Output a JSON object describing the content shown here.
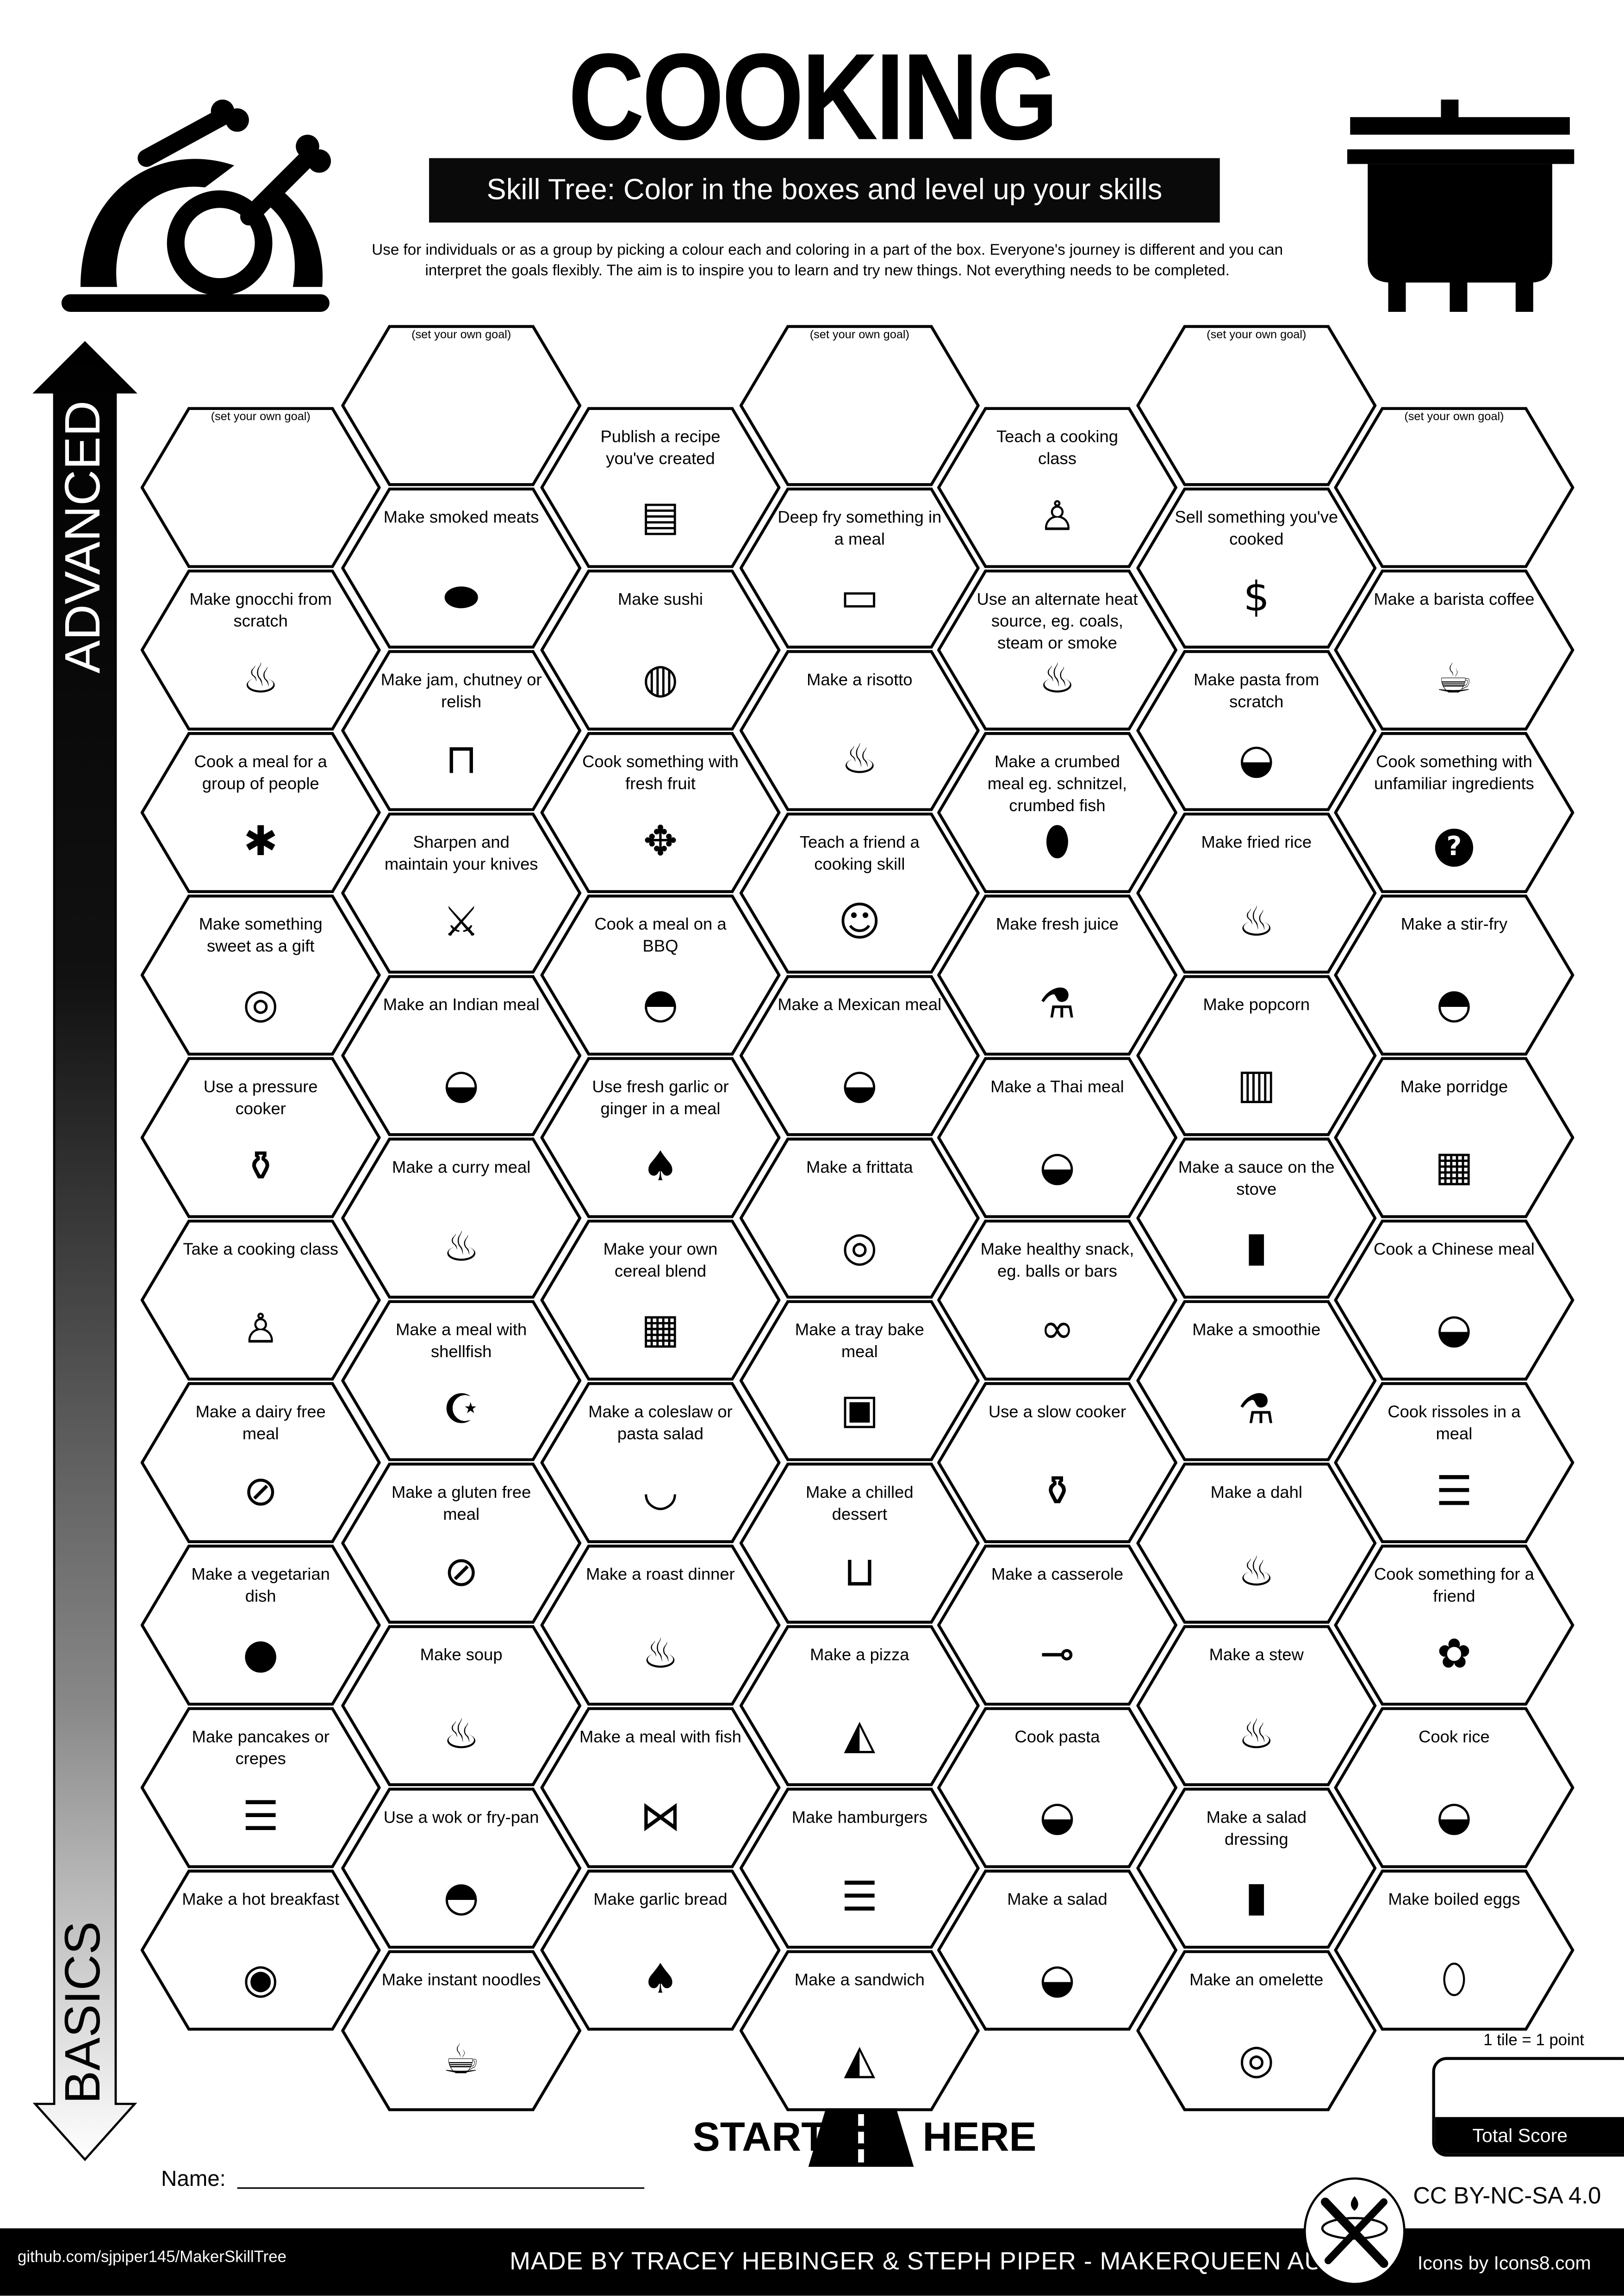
{
  "header": {
    "title": "COOKING",
    "banner": "Skill Tree:  Color in the boxes and level up your skills",
    "description_line1": "Use for individuals or as a group by picking a colour each and coloring in a part of the box.  Everyone's journey is different and you can",
    "description_line2": "interpret the goals flexibly.  The aim is to inspire you to learn and try new things. Not everything needs to be completed.",
    "left_icon": "roast-turkey-icon",
    "right_icon": "cooking-pot-icon"
  },
  "axis": {
    "top_label": "ADVANCED",
    "bottom_label": "BASICS"
  },
  "goal_text": "(set your own goal)",
  "columns": [
    [
      {
        "text": "(set your own goal)",
        "goal": true
      },
      {
        "text": "Make gnocchi from scratch",
        "icon": "steaming-bowl"
      },
      {
        "text": "Cook a meal for a group of people",
        "icon": "party-popper"
      },
      {
        "text": "Make something sweet as a gift",
        "icon": "cake"
      },
      {
        "text": "Use a pressure cooker",
        "icon": "pressure-cooker"
      },
      {
        "text": "Take a cooking class",
        "icon": "teacher"
      },
      {
        "text": "Make a dairy free meal",
        "icon": "no-milk"
      },
      {
        "text": "Make a vegetarian dish",
        "icon": "tomato-milk"
      },
      {
        "text": "Make pancakes or crepes",
        "icon": "pancakes"
      },
      {
        "text": "Make a hot breakfast",
        "icon": "breakfast-plate"
      }
    ],
    [
      {
        "text": "(set your own goal)",
        "goal": true
      },
      {
        "text": "Make smoked meats",
        "icon": "sausage"
      },
      {
        "text": "Make jam, chutney or relish",
        "icon": "jar"
      },
      {
        "text": "Sharpen and maintain your knives",
        "icon": "knife"
      },
      {
        "text": "Make an Indian meal",
        "icon": "curry-dish"
      },
      {
        "text": "Make a curry meal",
        "icon": "steaming-bowl"
      },
      {
        "text": "Make a meal with shellfish",
        "icon": "shrimp"
      },
      {
        "text": "Make a gluten free meal",
        "icon": "no-gluten"
      },
      {
        "text": "Make soup",
        "icon": "steaming-bowl"
      },
      {
        "text": "Use a wok or fry-pan",
        "icon": "wok"
      },
      {
        "text": "Make instant noodles",
        "icon": "noodle-cup"
      }
    ],
    [
      {
        "text": "Publish a recipe you've created",
        "icon": "recipe"
      },
      {
        "text": "Make sushi",
        "icon": "sushi"
      },
      {
        "text": "Cook something with fresh fruit",
        "icon": "pineapple"
      },
      {
        "text": "Cook a meal on a BBQ",
        "icon": "bbq"
      },
      {
        "text": "Use fresh garlic or ginger in a meal",
        "icon": "garlic"
      },
      {
        "text": "Make your own cereal blend",
        "icon": "cereal"
      },
      {
        "text": "Make a coleslaw or pasta salad",
        "icon": "bowl"
      },
      {
        "text": "Make a roast dinner",
        "icon": "roast-turkey"
      },
      {
        "text": "Make a meal with fish",
        "icon": "fish"
      },
      {
        "text": "Make garlic bread",
        "icon": "garlic"
      }
    ],
    [
      {
        "text": "(set your own goal)",
        "goal": true
      },
      {
        "text": "Deep fry something in a meal",
        "icon": "deep-fryer"
      },
      {
        "text": "Make a risotto",
        "icon": "steaming-bowl"
      },
      {
        "text": "Teach a friend a cooking skill",
        "icon": "people"
      },
      {
        "text": "Make a Mexican meal",
        "icon": "dish"
      },
      {
        "text": "Make a frittata",
        "icon": "pie"
      },
      {
        "text": "Make a tray bake meal",
        "icon": "tray"
      },
      {
        "text": "Make a chilled dessert",
        "icon": "dessert"
      },
      {
        "text": "Make a pizza",
        "icon": "pizza"
      },
      {
        "text": "Make hamburgers",
        "icon": "burger"
      },
      {
        "text": "Make a sandwich",
        "icon": "sandwich"
      }
    ],
    [
      {
        "text": "Teach a cooking class",
        "icon": "teacher"
      },
      {
        "text": "Use an alternate heat source, eg. coals, steam or smoke",
        "icon": "campfire"
      },
      {
        "text": "Make a crumbed meal eg. schnitzel, crumbed fish",
        "icon": "crumbed"
      },
      {
        "text": "Make fresh juice",
        "icon": "juice"
      },
      {
        "text": "Make a Thai meal",
        "icon": "dish"
      },
      {
        "text": "Make healthy snack, eg. balls or bars",
        "icon": "snack-balls"
      },
      {
        "text": "Use a slow cooker",
        "icon": "slow-cooker"
      },
      {
        "text": "Make a casserole",
        "icon": "saucepan"
      },
      {
        "text": "Cook pasta",
        "icon": "pasta-bowl"
      },
      {
        "text": "Make a salad",
        "icon": "salad"
      }
    ],
    [
      {
        "text": "(set your own goal)",
        "goal": true
      },
      {
        "text": "Sell something you've cooked",
        "icon": "money-bag"
      },
      {
        "text": "Make pasta from scratch",
        "icon": "pasta-bowl"
      },
      {
        "text": "Make fried rice",
        "icon": "steaming-bowl"
      },
      {
        "text": "Make popcorn",
        "icon": "popcorn"
      },
      {
        "text": "Make a sauce on the stove",
        "icon": "sauce-bottle"
      },
      {
        "text": "Make a smoothie",
        "icon": "juice"
      },
      {
        "text": "Make a dahl",
        "icon": "steaming-bowl"
      },
      {
        "text": "Make a stew",
        "icon": "stew-pot"
      },
      {
        "text": "Make a salad dressing",
        "icon": "dressing-bottle"
      },
      {
        "text": "Make an omelette",
        "icon": "omelette"
      }
    ],
    [
      {
        "text": "(set your own goal)",
        "goal": true
      },
      {
        "text": "Make a barista coffee",
        "icon": "coffee"
      },
      {
        "text": "Cook something with unfamiliar ingredients",
        "icon": "question"
      },
      {
        "text": "Make a stir-fry",
        "icon": "wok"
      },
      {
        "text": "Make porridge",
        "icon": "cereal"
      },
      {
        "text": "Cook a Chinese meal",
        "icon": "dish"
      },
      {
        "text": "Cook rissoles in a meal",
        "icon": "burger"
      },
      {
        "text": "Cook something for a friend",
        "icon": "gift"
      },
      {
        "text": "Cook rice",
        "icon": "rice-bowl"
      },
      {
        "text": "Make boiled eggs",
        "icon": "egg"
      }
    ]
  ],
  "start": {
    "left": "START",
    "right": "HERE",
    "icon": "road-icon"
  },
  "name_label": "Name:",
  "score": {
    "rule": "1 tile = 1 point",
    "label": "Total Score"
  },
  "footer": {
    "github": "github.com/sjpiper145/MakerSkillTree",
    "made_by": "MADE BY TRACEY HEBINGER & STEPH PIPER  -  MAKERQUEEN AU",
    "license": "CC BY-NC-SA 4.0",
    "icons_credit": "Icons by Icons8.com",
    "logo": "maker-tools-logo",
    "logo_text": "MakerQueen"
  },
  "colors": {
    "ink": "#000000",
    "paper": "#ffffff",
    "banner": "#0a0a0a"
  }
}
